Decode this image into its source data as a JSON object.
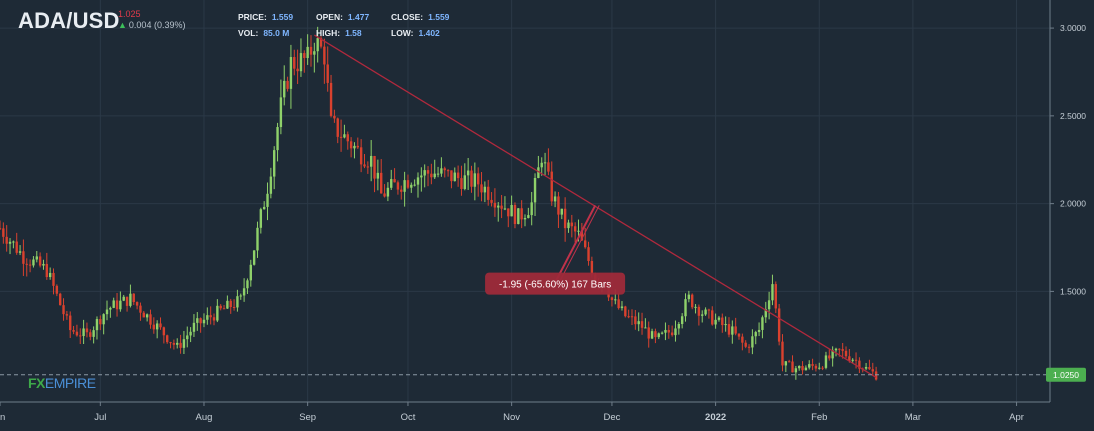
{
  "header": {
    "symbol": "ADA/USD",
    "last_price": "1.025",
    "change": "0.004 (0.39%)",
    "stats": [
      {
        "label": "PRICE:",
        "value": "1.559"
      },
      {
        "label": "OPEN:",
        "value": "1.477"
      },
      {
        "label": "CLOSE:",
        "value": "1.559"
      },
      {
        "label": "VOL:",
        "value": "85.0 M"
      },
      {
        "label": "HIGH:",
        "value": "1.58"
      },
      {
        "label": "LOW:",
        "value": "1.402"
      }
    ]
  },
  "watermark": {
    "fx": "FX",
    "empire": "EMPIRE"
  },
  "colors": {
    "background": "#1e2a36",
    "up": "#8fd16a",
    "down": "#d9412e",
    "trendline": "#b0293d",
    "annotation_bg": "#9e2a3a",
    "price_tag": "#4caf50"
  },
  "chart_data": {
    "type": "candlestick",
    "title": "",
    "xlabel": "",
    "ylabel": "",
    "ylim": [
      0.87,
      3.16
    ],
    "xlim": [
      "2021-06-01",
      "2022-04-11"
    ],
    "x_ticks": [
      {
        "label": "n",
        "date": "2021-06-01"
      },
      {
        "label": "Jul",
        "date": "2021-07-01"
      },
      {
        "label": "Aug",
        "date": "2021-08-01"
      },
      {
        "label": "Sep",
        "date": "2021-09-01"
      },
      {
        "label": "Oct",
        "date": "2021-10-01"
      },
      {
        "label": "Nov",
        "date": "2021-11-01"
      },
      {
        "label": "Dec",
        "date": "2021-12-01"
      },
      {
        "label": "2022",
        "date": "2022-01-01"
      },
      {
        "label": "Feb",
        "date": "2022-02-01"
      },
      {
        "label": "Mar",
        "date": "2022-03-01"
      },
      {
        "label": "Apr",
        "date": "2022-04-01"
      }
    ],
    "y_ticks": [
      "1.5000",
      "2.0000",
      "2.5000",
      "3.0000"
    ],
    "price_line": {
      "value": 1.025,
      "label": "1.0250"
    },
    "trendline": {
      "start": [
        "2021-09-03",
        2.96
      ],
      "end": [
        "2022-02-18",
        1.01
      ]
    },
    "annotation": {
      "text": "-1.95 (-65.60%) 167 Bars",
      "arrow_from": [
        "2021-11-14",
        1.55
      ],
      "arrow_to": [
        "2021-11-26",
        1.99
      ]
    },
    "anchors": [
      [
        "2021-06-01",
        1.86
      ],
      [
        "2021-06-08",
        1.7
      ],
      [
        "2021-06-15",
        1.62
      ],
      [
        "2021-06-22",
        1.28
      ],
      [
        "2021-06-27",
        1.25
      ],
      [
        "2021-07-03",
        1.4
      ],
      [
        "2021-07-10",
        1.46
      ],
      [
        "2021-07-18",
        1.3
      ],
      [
        "2021-07-24",
        1.18
      ],
      [
        "2021-07-29",
        1.3
      ],
      [
        "2021-08-05",
        1.38
      ],
      [
        "2021-08-12",
        1.45
      ],
      [
        "2021-08-16",
        1.75
      ],
      [
        "2021-08-20",
        2.1
      ],
      [
        "2021-08-24",
        2.55
      ],
      [
        "2021-08-27",
        2.8
      ],
      [
        "2021-09-01",
        2.82
      ],
      [
        "2021-09-03",
        2.93
      ],
      [
        "2021-09-06",
        2.85
      ],
      [
        "2021-09-08",
        2.45
      ],
      [
        "2021-09-12",
        2.38
      ],
      [
        "2021-09-16",
        2.3
      ],
      [
        "2021-09-20",
        2.25
      ],
      [
        "2021-09-23",
        2.05
      ],
      [
        "2021-09-27",
        2.1
      ],
      [
        "2021-10-02",
        2.15
      ],
      [
        "2021-10-08",
        2.18
      ],
      [
        "2021-10-15",
        2.15
      ],
      [
        "2021-10-22",
        2.12
      ],
      [
        "2021-10-29",
        2.0
      ],
      [
        "2021-11-03",
        1.92
      ],
      [
        "2021-11-07",
        2.0
      ],
      [
        "2021-11-10",
        2.28
      ],
      [
        "2021-11-13",
        2.05
      ],
      [
        "2021-11-17",
        1.88
      ],
      [
        "2021-11-21",
        1.82
      ],
      [
        "2021-11-26",
        1.58
      ],
      [
        "2021-11-29",
        1.55
      ],
      [
        "2021-12-01",
        1.45
      ],
      [
        "2021-12-05",
        1.36
      ],
      [
        "2021-12-10",
        1.3
      ],
      [
        "2021-12-14",
        1.22
      ],
      [
        "2021-12-19",
        1.28
      ],
      [
        "2021-12-24",
        1.46
      ],
      [
        "2021-12-28",
        1.38
      ],
      [
        "2022-01-02",
        1.32
      ],
      [
        "2022-01-06",
        1.27
      ],
      [
        "2022-01-10",
        1.18
      ],
      [
        "2022-01-14",
        1.28
      ],
      [
        "2022-01-18",
        1.55
      ],
      [
        "2022-01-21",
        1.08
      ],
      [
        "2022-01-26",
        1.06
      ],
      [
        "2022-02-01",
        1.08
      ],
      [
        "2022-02-07",
        1.16
      ],
      [
        "2022-02-11",
        1.12
      ],
      [
        "2022-02-15",
        1.06
      ],
      [
        "2022-02-18",
        1.025
      ]
    ]
  }
}
